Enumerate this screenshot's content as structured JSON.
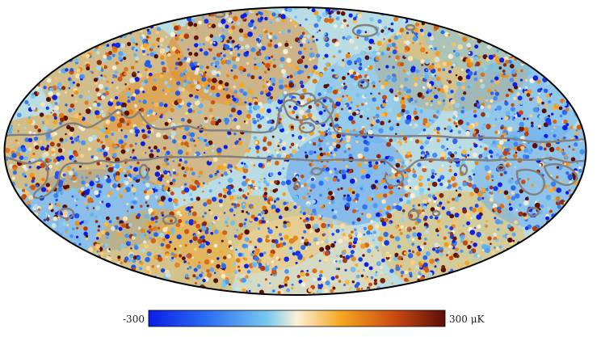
{
  "colorbar": {
    "min_label": "-300",
    "max_label": "300 μK",
    "stops": [
      "#0b1de6",
      "#2c6ff2",
      "#78c8ee",
      "#fbf1d8",
      "#f4a61e",
      "#cb4a12",
      "#5a0e08"
    ]
  },
  "map": {
    "projection": "mollweide",
    "outline_color": "#000000",
    "mask_contour_color": "#808080"
  }
}
